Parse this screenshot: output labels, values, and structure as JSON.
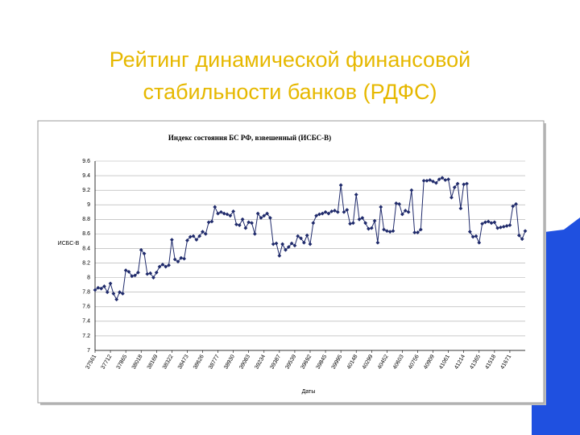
{
  "slide": {
    "title_lines": [
      "Рейтинг динамической финансовой",
      "стабильности банков (РДФС)"
    ]
  },
  "chart_data": {
    "type": "line",
    "title": "Индекс состояния БС РФ, взвешенный (ИСБС-В)",
    "x_label": "Даты",
    "y_label": "ИСБС-В",
    "color": "#1f2a6b",
    "grid": true,
    "ylim": [
      7,
      9.6
    ],
    "yticks": [
      7,
      7.2,
      7.4,
      7.6,
      7.8,
      8,
      8.2,
      8.4,
      8.6,
      8.8,
      9,
      9.2,
      9.4,
      9.6
    ],
    "categories": [
      "37561",
      null,
      null,
      null,
      null,
      "37712",
      null,
      null,
      null,
      null,
      "37865",
      null,
      null,
      null,
      null,
      "38018",
      null,
      null,
      null,
      null,
      "38169",
      null,
      null,
      null,
      null,
      "38322",
      null,
      null,
      null,
      null,
      "38473",
      null,
      null,
      null,
      null,
      "38626",
      null,
      null,
      null,
      null,
      "38777",
      null,
      null,
      null,
      null,
      "38930",
      null,
      null,
      null,
      null,
      "39083",
      null,
      null,
      null,
      null,
      "39234",
      null,
      null,
      null,
      null,
      "39387",
      null,
      null,
      null,
      null,
      "39539",
      null,
      null,
      null,
      null,
      "39692",
      null,
      null,
      null,
      null,
      "39845",
      null,
      null,
      null,
      null,
      "39995",
      null,
      null,
      null,
      null,
      "40148",
      null,
      null,
      null,
      null,
      "40299",
      null,
      null,
      null,
      null,
      "40452",
      null,
      null,
      null,
      null,
      "40603",
      null,
      null,
      null,
      null,
      "40756",
      null,
      null,
      null,
      null,
      "40909",
      null,
      null,
      null,
      null,
      "41061",
      null,
      null,
      null,
      null,
      "41214",
      null,
      null,
      null,
      null,
      "41365",
      null,
      null,
      null,
      null,
      "41518",
      null,
      null,
      null,
      null,
      "41671",
      null,
      null,
      null,
      null,
      null
    ],
    "values": [
      7.83,
      7.86,
      7.85,
      7.88,
      7.8,
      7.92,
      7.78,
      7.7,
      7.8,
      7.78,
      8.1,
      8.08,
      8.02,
      8.03,
      8.07,
      8.38,
      8.33,
      8.05,
      8.06,
      8.0,
      8.07,
      8.15,
      8.18,
      8.15,
      8.17,
      8.52,
      8.25,
      8.22,
      8.27,
      8.26,
      8.51,
      8.56,
      8.57,
      8.52,
      8.57,
      8.63,
      8.6,
      8.76,
      8.77,
      8.97,
      8.88,
      8.9,
      8.88,
      8.87,
      8.85,
      8.91,
      8.73,
      8.72,
      8.8,
      8.68,
      8.76,
      8.75,
      8.6,
      8.88,
      8.82,
      8.85,
      8.88,
      8.82,
      8.46,
      8.47,
      8.3,
      8.46,
      8.38,
      8.42,
      8.47,
      8.44,
      8.57,
      8.54,
      8.48,
      8.58,
      8.46,
      8.75,
      8.85,
      8.87,
      8.88,
      8.9,
      8.88,
      8.91,
      8.92,
      8.9,
      9.27,
      8.9,
      8.93,
      8.74,
      8.75,
      9.14,
      8.8,
      8.82,
      8.75,
      8.67,
      8.68,
      8.78,
      8.48,
      8.97,
      8.66,
      8.64,
      8.63,
      8.64,
      9.02,
      9.01,
      8.87,
      8.92,
      8.9,
      9.2,
      8.62,
      8.62,
      8.66,
      9.33,
      9.33,
      9.34,
      9.32,
      9.3,
      9.35,
      9.37,
      9.34,
      9.35,
      9.1,
      9.24,
      9.29,
      8.95,
      9.28,
      9.29,
      8.63,
      8.56,
      8.57,
      8.48,
      8.74,
      8.76,
      8.77,
      8.75,
      8.76,
      8.68,
      8.69,
      8.7,
      8.71,
      8.72,
      8.98,
      9.01,
      8.58,
      8.53,
      8.64
    ]
  }
}
